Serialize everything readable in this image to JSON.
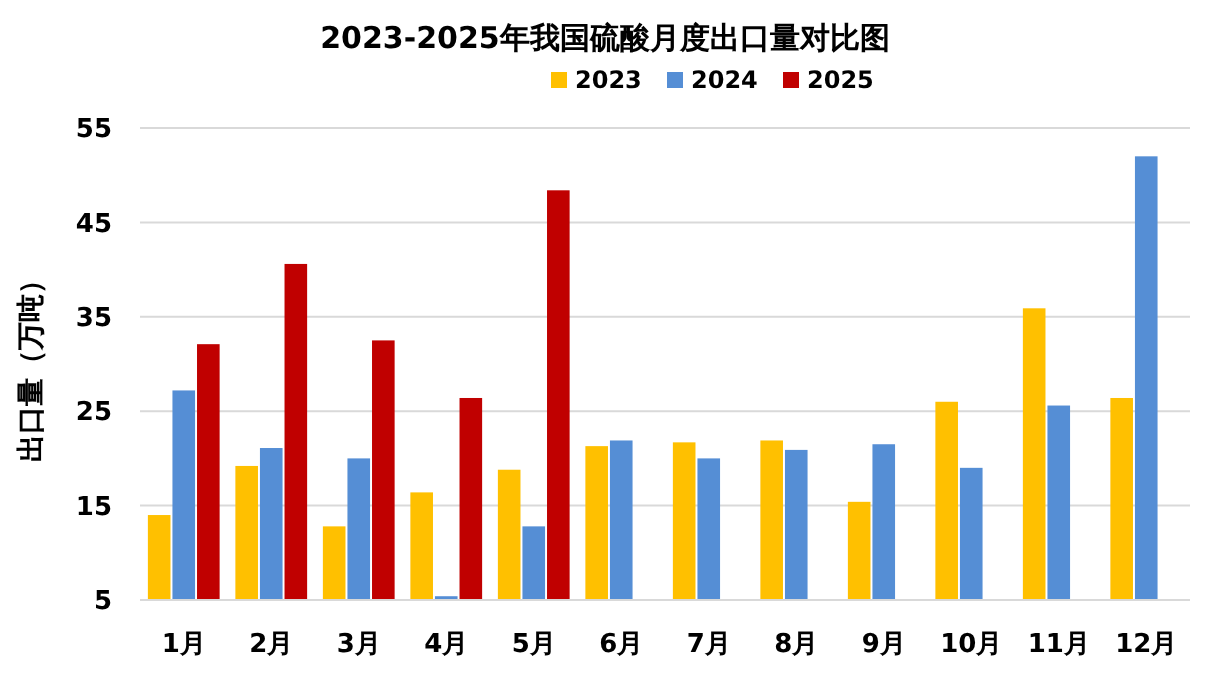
{
  "chart_data": {
    "type": "bar",
    "title": "2023-2025年我国硫酸月度出口量对比图",
    "ylabel": "出口量（万吨）",
    "categories": [
      "1月",
      "2月",
      "3月",
      "4月",
      "5月",
      "6月",
      "7月",
      "8月",
      "9月",
      "10月",
      "11月",
      "12月"
    ],
    "series": [
      {
        "name": "2023",
        "color": "#ffc000",
        "values": [
          14.0,
          19.2,
          12.8,
          16.4,
          18.8,
          21.3,
          21.7,
          21.9,
          15.4,
          26.0,
          35.9,
          26.4
        ]
      },
      {
        "name": "2024",
        "color": "#558ed5",
        "values": [
          27.2,
          21.1,
          20.0,
          5.4,
          12.8,
          21.9,
          20.0,
          20.9,
          21.5,
          19.0,
          25.6,
          52.0
        ]
      },
      {
        "name": "2025",
        "color": "#c00000",
        "values": [
          32.1,
          40.6,
          32.5,
          26.4,
          48.4,
          null,
          null,
          null,
          null,
          null,
          null,
          null
        ]
      }
    ],
    "ylim": [
      5,
      55
    ],
    "yticks": [
      5,
      15,
      25,
      35,
      45,
      55
    ],
    "grid": "y",
    "legend": "top"
  }
}
